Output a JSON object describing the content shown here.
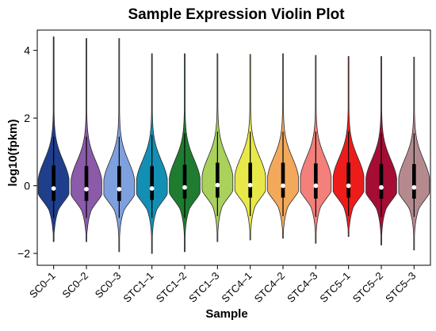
{
  "chart_data": {
    "type": "violin",
    "title": "Sample Expression Violin Plot",
    "xlabel": "Sample",
    "ylabel": "log10(fpkm)",
    "ylim": [
      -2.35,
      4.6
    ],
    "yticks": [
      -2,
      0,
      2,
      4
    ],
    "grid": false,
    "legend": "none",
    "categories": [
      "SC0–1",
      "SC0–2",
      "SC0–3",
      "STC1–1",
      "STC1–2",
      "STC1–3",
      "STC4–1",
      "STC4–2",
      "STC4–3",
      "STC5–1",
      "STC5–2",
      "STC5–3"
    ],
    "colors": [
      "#1f3e8c",
      "#8b5aa8",
      "#7fa0de",
      "#138fb4",
      "#1e7b30",
      "#a9d15b",
      "#e8e84a",
      "#f3a95c",
      "#f3807a",
      "#ee1b1b",
      "#a50d35",
      "#b58a8f"
    ],
    "series": [
      {
        "min": -1.65,
        "max": 4.4,
        "q1": -0.45,
        "median": -0.08,
        "q3": 0.6,
        "whisker_low": -0.95,
        "whisker_high": 1.45
      },
      {
        "min": -1.65,
        "max": 4.35,
        "q1": -0.45,
        "median": -0.1,
        "q3": 0.58,
        "whisker_low": -0.95,
        "whisker_high": 1.45
      },
      {
        "min": -1.95,
        "max": 4.35,
        "q1": -0.45,
        "median": -0.1,
        "q3": 0.58,
        "whisker_low": -0.95,
        "whisker_high": 1.45
      },
      {
        "min": -2.0,
        "max": 3.9,
        "q1": -0.42,
        "median": -0.08,
        "q3": 0.58,
        "whisker_low": -0.95,
        "whisker_high": 1.5
      },
      {
        "min": -1.95,
        "max": 3.9,
        "q1": -0.38,
        "median": -0.05,
        "q3": 0.62,
        "whisker_low": -0.95,
        "whisker_high": 1.55
      },
      {
        "min": -1.65,
        "max": 3.9,
        "q1": -0.35,
        "median": 0.02,
        "q3": 0.68,
        "whisker_low": -0.9,
        "whisker_high": 1.6
      },
      {
        "min": -1.6,
        "max": 3.88,
        "q1": -0.35,
        "median": 0.02,
        "q3": 0.68,
        "whisker_low": -0.9,
        "whisker_high": 1.6
      },
      {
        "min": -1.55,
        "max": 3.9,
        "q1": -0.35,
        "median": 0.0,
        "q3": 0.68,
        "whisker_low": -0.9,
        "whisker_high": 1.6
      },
      {
        "min": -1.7,
        "max": 3.85,
        "q1": -0.38,
        "median": 0.0,
        "q3": 0.66,
        "whisker_low": -0.92,
        "whisker_high": 1.6
      },
      {
        "min": -1.5,
        "max": 3.82,
        "q1": -0.35,
        "median": 0.0,
        "q3": 0.68,
        "whisker_low": -0.9,
        "whisker_high": 1.6
      },
      {
        "min": -1.75,
        "max": 3.82,
        "q1": -0.38,
        "median": -0.05,
        "q3": 0.64,
        "whisker_low": -0.92,
        "whisker_high": 1.55
      },
      {
        "min": -1.9,
        "max": 3.8,
        "q1": -0.38,
        "median": -0.05,
        "q3": 0.64,
        "whisker_low": -0.92,
        "whisker_high": 1.55
      }
    ]
  }
}
